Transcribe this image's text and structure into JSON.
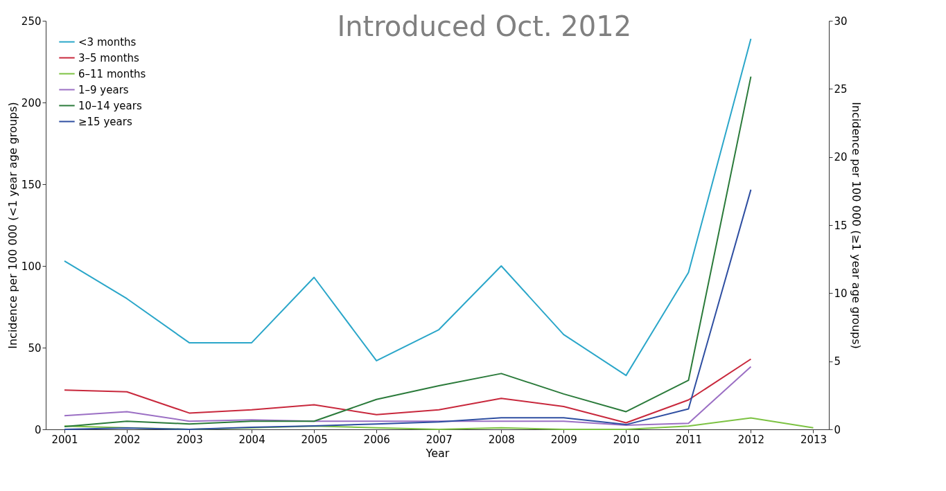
{
  "chart_data": {
    "type": "line",
    "xlabel": "Year",
    "ylabel": "Incidence per 100 000 (<1 year age groups)",
    "y2label": "Incidence per 100 000 (≥1 year age groups)",
    "annotations": [
      "Introduced Oct. 2012"
    ],
    "x": [
      2001,
      2002,
      2003,
      2004,
      2005,
      2006,
      2007,
      2008,
      2009,
      2010,
      2011,
      2012,
      2013
    ],
    "xlim": [
      2000.7,
      2013.25
    ],
    "xticks": [
      2001,
      2002,
      2003,
      2004,
      2005,
      2006,
      2007,
      2008,
      2009,
      2010,
      2011,
      2012,
      2013
    ],
    "ylim": [
      0,
      250
    ],
    "yticks": [
      0,
      50,
      100,
      150,
      200,
      250
    ],
    "y2lim": [
      0,
      30
    ],
    "y2ticks": [
      0,
      5,
      10,
      15,
      20,
      25,
      30
    ],
    "grid": false,
    "legend": "top left",
    "marker": "none",
    "line_style": "solid",
    "series": [
      {
        "name": "<3 months",
        "color": "#2aa6c9",
        "values": [
          103,
          80,
          53,
          53,
          93,
          42,
          61,
          100,
          58,
          33,
          96,
          239,
          null
        ]
      },
      {
        "name": "3–5 months",
        "color": "#c8283c",
        "values": [
          24,
          23,
          10,
          12,
          15,
          9,
          12,
          19,
          14,
          4,
          18,
          43,
          null
        ]
      },
      {
        "name": "6–11 months",
        "color": "#7cc242",
        "values": [
          2,
          1,
          0,
          1,
          2,
          1,
          0,
          1,
          0,
          0,
          2,
          7,
          1
        ]
      },
      {
        "name": "1–9 years",
        "color": "#9b6fc4",
        "axis": "y2",
        "values": [
          1.0,
          1.3,
          0.6,
          0.7,
          0.6,
          0.6,
          0.6,
          0.6,
          0.6,
          0.3,
          0.45,
          4.6,
          null
        ]
      },
      {
        "name": "10–14 years",
        "color": "#2a7a3a",
        "axis": "y2",
        "values": [
          0.2,
          0.6,
          0.4,
          0.6,
          0.6,
          2.2,
          3.2,
          4.1,
          2.6,
          1.3,
          3.6,
          25.9,
          null
        ]
      },
      {
        "name": "≥15 years",
        "color": "#2e4ea1",
        "axis": "y2",
        "values": [
          0,
          0.1,
          0,
          0.15,
          0.25,
          0.4,
          0.55,
          0.85,
          0.85,
          0.35,
          1.5,
          17.6,
          null
        ]
      }
    ]
  }
}
